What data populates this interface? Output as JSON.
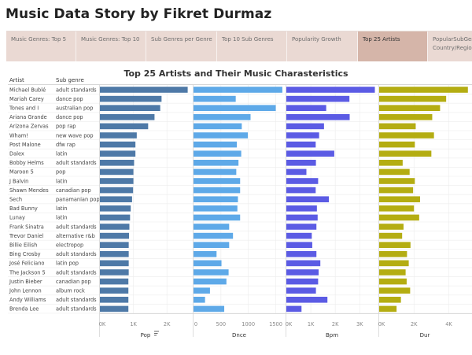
{
  "story": {
    "title": "Music Data Story by Fikret Durmaz"
  },
  "nav": {
    "tabs": [
      {
        "label": "Music Genres: Top 5",
        "active": false
      },
      {
        "label": "Music Genres: Top 10",
        "active": false
      },
      {
        "label": "Sub Genres per Genre",
        "active": false
      },
      {
        "label": "Top 10 Sub Genres",
        "active": false
      },
      {
        "label": "Popularity Growth",
        "active": false
      },
      {
        "label": "Top 25 Artists",
        "active": true
      },
      {
        "label": "PopularSubGen Country/Region",
        "active": false
      }
    ]
  },
  "chart_data": {
    "type": "bar",
    "title": "Top 25 Artists and Their Music Charasteristics",
    "row_headers": [
      "Artist",
      "Sub genre"
    ],
    "rows": [
      {
        "artist": "Michael Bublé",
        "sub_genre": "adult standards"
      },
      {
        "artist": "Mariah Carey",
        "sub_genre": "dance pop"
      },
      {
        "artist": "Tones and I",
        "sub_genre": "australian pop"
      },
      {
        "artist": "Ariana Grande",
        "sub_genre": "dance pop"
      },
      {
        "artist": "Arizona Zervas",
        "sub_genre": "pop rap"
      },
      {
        "artist": "Wham!",
        "sub_genre": "new wave pop"
      },
      {
        "artist": "Post Malone",
        "sub_genre": "dfw rap"
      },
      {
        "artist": "Dalex",
        "sub_genre": "latin"
      },
      {
        "artist": "Bobby Helms",
        "sub_genre": "adult standards"
      },
      {
        "artist": "Maroon 5",
        "sub_genre": "pop"
      },
      {
        "artist": "J Balvin",
        "sub_genre": "latin"
      },
      {
        "artist": "Shawn Mendes",
        "sub_genre": "canadian pop"
      },
      {
        "artist": "Sech",
        "sub_genre": "panamanian pop"
      },
      {
        "artist": "Bad Bunny",
        "sub_genre": "latin"
      },
      {
        "artist": "Lunay",
        "sub_genre": "latin"
      },
      {
        "artist": "Frank Sinatra",
        "sub_genre": "adult standards"
      },
      {
        "artist": "Trevor Daniel",
        "sub_genre": "alternative r&b"
      },
      {
        "artist": "Billie Eilish",
        "sub_genre": "electropop"
      },
      {
        "artist": "Bing Crosby",
        "sub_genre": "adult standards"
      },
      {
        "artist": "José Feliciano",
        "sub_genre": "latin pop"
      },
      {
        "artist": "The Jackson 5",
        "sub_genre": "adult standards"
      },
      {
        "artist": "Justin Bieber",
        "sub_genre": "canadian pop"
      },
      {
        "artist": "John Lennon",
        "sub_genre": "album rock"
      },
      {
        "artist": "Andy Williams",
        "sub_genre": "adult standards"
      },
      {
        "artist": "Brenda Lee",
        "sub_genre": "adult standards"
      }
    ],
    "panels": [
      {
        "name": "Pop",
        "has_sort_icon": true,
        "color": "#4e79a7",
        "max": 2700,
        "ticks": [
          0,
          1000,
          2000
        ],
        "tick_labels": [
          "0K",
          "1K",
          "2K"
        ],
        "values": [
          2620,
          1840,
          1800,
          1630,
          1440,
          1100,
          1060,
          1060,
          1020,
          1000,
          1000,
          990,
          960,
          920,
          900,
          880,
          870,
          860,
          860,
          860,
          860,
          850,
          850,
          850,
          850
        ]
      },
      {
        "name": "Dnce",
        "has_sort_icon": false,
        "color": "#5ea9e8",
        "max": 1650,
        "ticks": [
          0,
          500,
          1000,
          1500
        ],
        "tick_labels": [
          "0",
          "500",
          "1000",
          "1500"
        ],
        "values": [
          1620,
          770,
          1500,
          1040,
          880,
          990,
          790,
          870,
          820,
          780,
          850,
          850,
          810,
          800,
          850,
          650,
          720,
          650,
          420,
          510,
          640,
          600,
          300,
          210,
          560
        ]
      },
      {
        "name": "Bpm",
        "has_sort_icon": false,
        "color": "#5b5be4",
        "max": 3700,
        "ticks": [
          0,
          1000,
          2000,
          3000
        ],
        "tick_labels": [
          "0K",
          "1K",
          "2K",
          "3K"
        ],
        "values": [
          3620,
          2580,
          1630,
          2590,
          1540,
          1340,
          1200,
          1960,
          1210,
          820,
          1300,
          1200,
          1740,
          1250,
          1280,
          1230,
          1040,
          1060,
          1230,
          1390,
          1320,
          1300,
          1210,
          1680,
          620
        ]
      },
      {
        "name": "Dur",
        "has_sort_icon": false,
        "color": "#b4ad12",
        "max": 5200,
        "ticks": [
          0,
          2000,
          4000
        ],
        "tick_labels": [
          "0K",
          "2K",
          "4K"
        ],
        "values": [
          5100,
          3850,
          3500,
          3050,
          2100,
          3150,
          2050,
          3000,
          1350,
          1750,
          2050,
          1950,
          2350,
          2000,
          2300,
          1400,
          1320,
          1800,
          1600,
          1700,
          1520,
          1580,
          1780,
          1250,
          1000
        ]
      }
    ]
  }
}
